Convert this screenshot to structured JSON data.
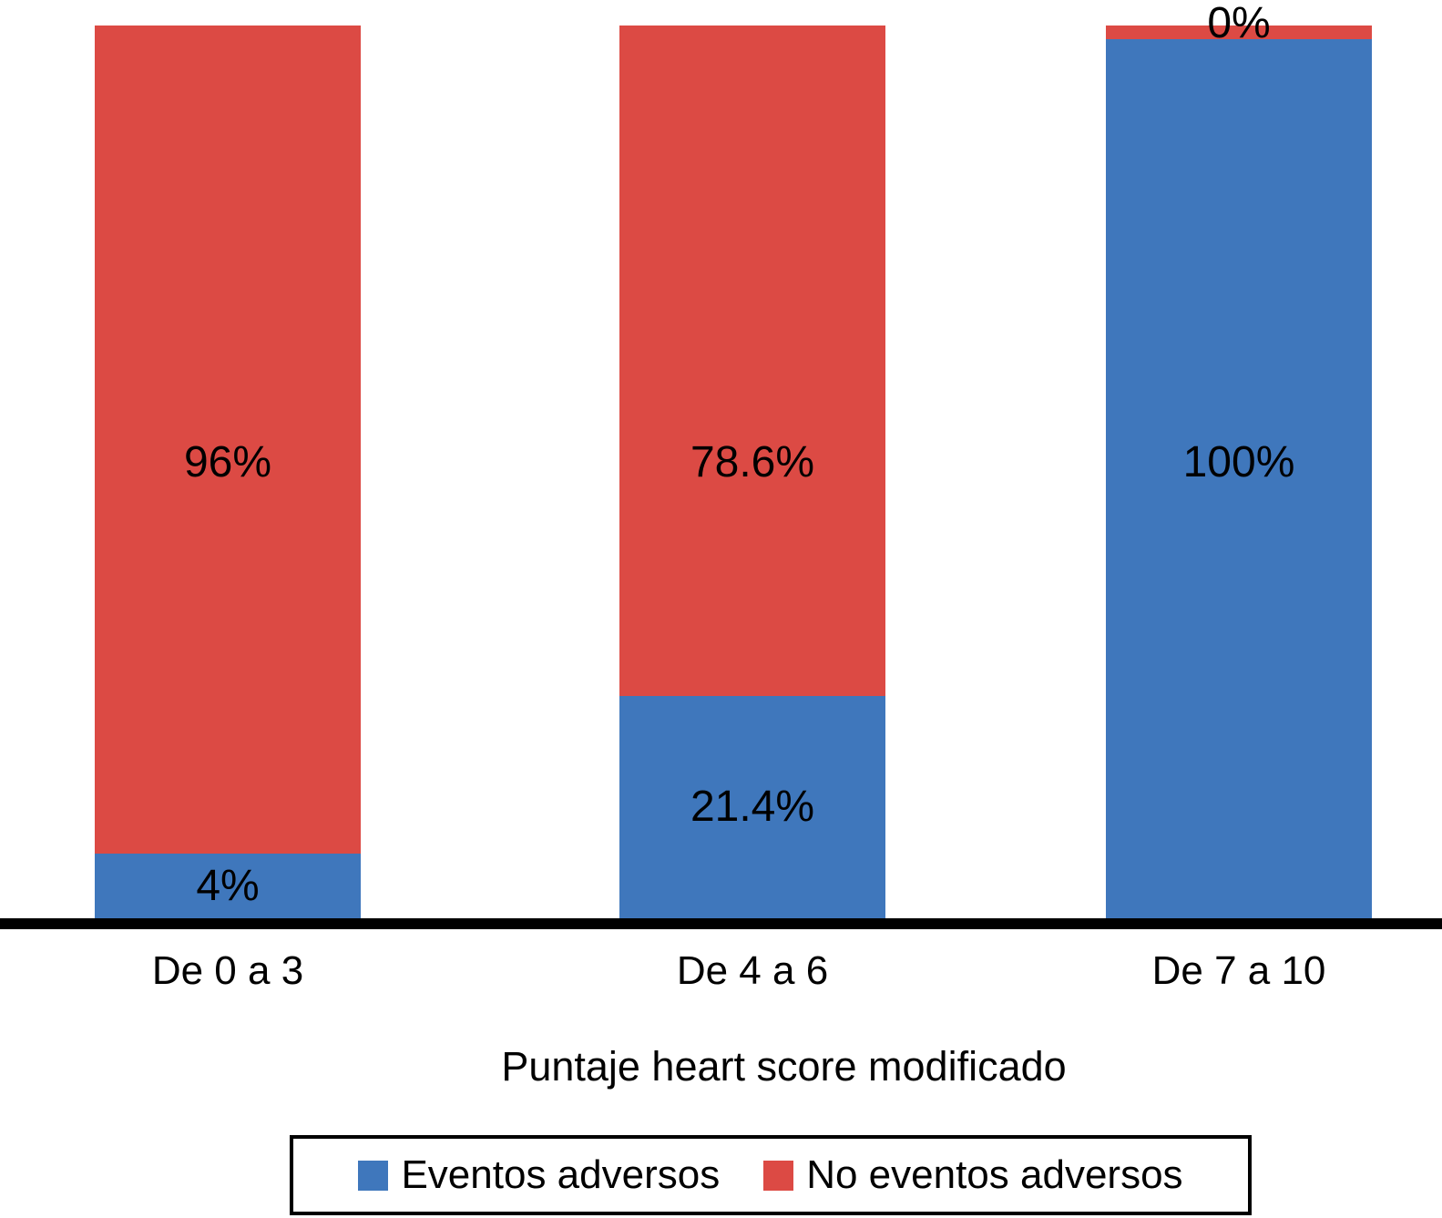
{
  "chart_data": {
    "type": "bar",
    "stacked": true,
    "percent_stacked": true,
    "title": "",
    "xlabel": "Puntaje heart score modificado",
    "ylabel": "",
    "ylim": [
      0,
      100
    ],
    "grid": false,
    "legend_position": "bottom-boxed",
    "categories": [
      "De 0 a 3",
      "De 4 a 6",
      "De 7 a 10"
    ],
    "series": [
      {
        "name": "Eventos adversos",
        "color": "#3F77BC",
        "values": [
          4,
          21.4,
          100
        ]
      },
      {
        "name": "No eventos adversos",
        "color": "#DC4A44",
        "values": [
          96,
          78.6,
          0
        ]
      }
    ],
    "value_labels": {
      "mid": [
        "96%",
        "78.6%",
        "100%"
      ],
      "inside_bottom": [
        "4%",
        "21.4%",
        null
      ],
      "above_top": [
        null,
        null,
        "0%"
      ]
    },
    "layout": {
      "visual_segment_pct": {
        "eventos_adversos": [
          7.2,
          24.9,
          98.5
        ],
        "no_eventos_adversos": [
          92.8,
          75.1,
          1.5
        ]
      },
      "mid_label_y_pct": 49
    }
  }
}
